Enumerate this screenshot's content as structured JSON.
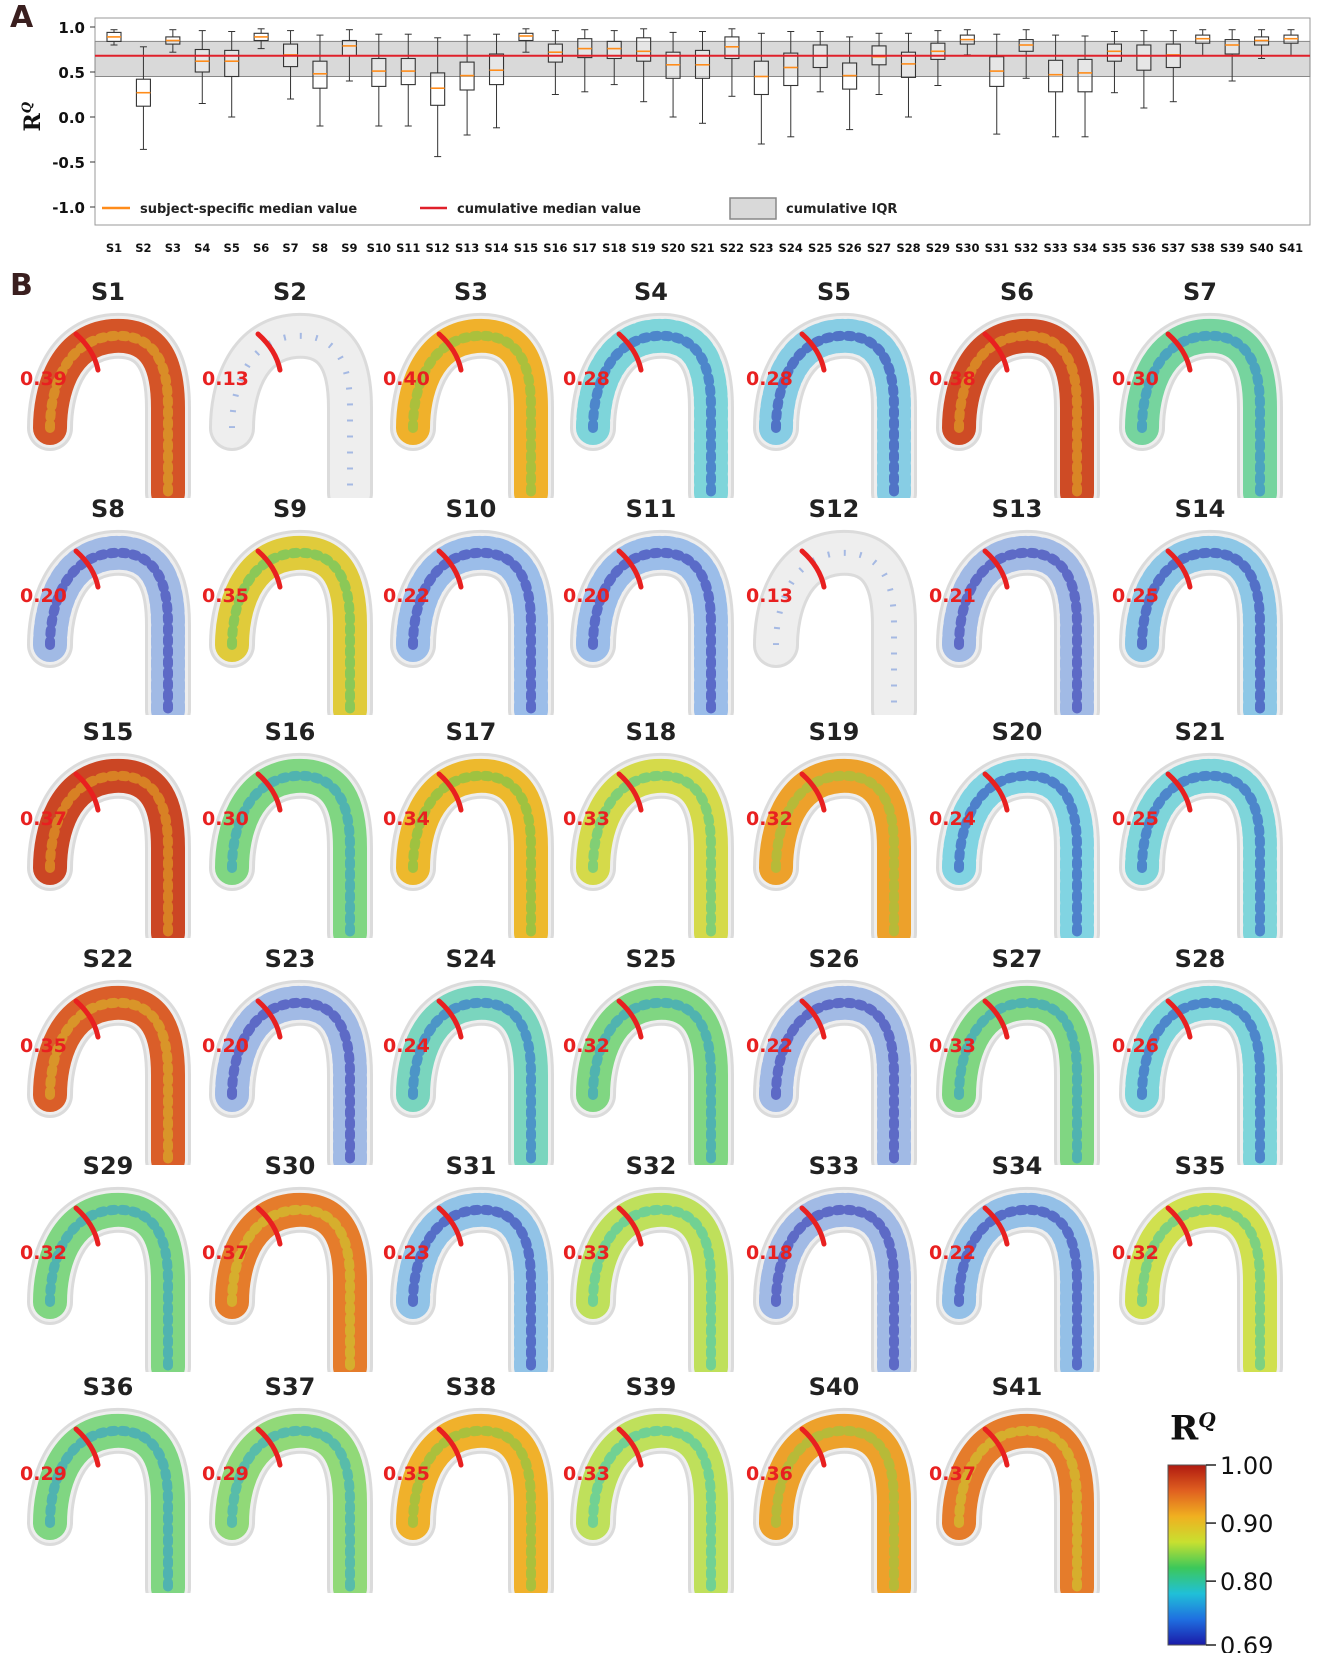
{
  "panel_a": {
    "letter": "A",
    "ylabel": "R",
    "ylabel_sup": "Q",
    "legend": {
      "subject_median": "subject-specific median value",
      "cumulative_median": "cumulative median value",
      "cumulative_iqr": "cumulative IQR"
    }
  },
  "panel_b": {
    "letter": "B"
  },
  "colors": {
    "box_edge": "#333333",
    "subject_median": "#ff8c1a",
    "cumulative_median": "#e0202a",
    "iqr_fill": "#d9d9d9",
    "section_line": "#e82020"
  },
  "chart_data": [
    {
      "type": "box",
      "ylabel": "R^Q",
      "ylim": [
        -1.2,
        1.1
      ],
      "yticks": [
        "-1.0",
        "-0.5",
        "0.0",
        "0.5",
        "1.0"
      ],
      "ytick_values": [
        -1.0,
        -0.5,
        0.0,
        0.5,
        1.0
      ],
      "cumulative_median": 0.68,
      "cumulative_iqr": [
        0.45,
        0.84
      ],
      "categories": [
        "S1",
        "S2",
        "S3",
        "S4",
        "S5",
        "S6",
        "S7",
        "S8",
        "S9",
        "S10",
        "S11",
        "S12",
        "S13",
        "S14",
        "S15",
        "S16",
        "S17",
        "S18",
        "S19",
        "S20",
        "S21",
        "S22",
        "S23",
        "S24",
        "S25",
        "S26",
        "S27",
        "S28",
        "S29",
        "S30",
        "S31",
        "S32",
        "S33",
        "S34",
        "S35",
        "S36",
        "S37",
        "S38",
        "S39",
        "S40",
        "S41"
      ],
      "boxes": [
        {
          "min": 0.8,
          "q1": 0.84,
          "median": 0.89,
          "q3": 0.94,
          "max": 0.97
        },
        {
          "min": -0.36,
          "q1": 0.12,
          "median": 0.27,
          "q3": 0.42,
          "max": 0.78
        },
        {
          "min": 0.72,
          "q1": 0.81,
          "median": 0.85,
          "q3": 0.89,
          "max": 0.97
        },
        {
          "min": 0.15,
          "q1": 0.5,
          "median": 0.62,
          "q3": 0.75,
          "max": 0.96
        },
        {
          "min": 0.0,
          "q1": 0.45,
          "median": 0.62,
          "q3": 0.74,
          "max": 0.95
        },
        {
          "min": 0.76,
          "q1": 0.85,
          "median": 0.89,
          "q3": 0.93,
          "max": 0.98
        },
        {
          "min": 0.2,
          "q1": 0.56,
          "median": 0.69,
          "q3": 0.81,
          "max": 0.96
        },
        {
          "min": -0.1,
          "q1": 0.32,
          "median": 0.48,
          "q3": 0.62,
          "max": 0.91
        },
        {
          "min": 0.4,
          "q1": 0.68,
          "median": 0.79,
          "q3": 0.85,
          "max": 0.97
        },
        {
          "min": -0.1,
          "q1": 0.34,
          "median": 0.51,
          "q3": 0.65,
          "max": 0.92
        },
        {
          "min": -0.1,
          "q1": 0.36,
          "median": 0.51,
          "q3": 0.65,
          "max": 0.92
        },
        {
          "min": -0.44,
          "q1": 0.13,
          "median": 0.32,
          "q3": 0.49,
          "max": 0.88
        },
        {
          "min": -0.2,
          "q1": 0.3,
          "median": 0.46,
          "q3": 0.61,
          "max": 0.91
        },
        {
          "min": -0.12,
          "q1": 0.36,
          "median": 0.52,
          "q3": 0.7,
          "max": 0.92
        },
        {
          "min": 0.72,
          "q1": 0.85,
          "median": 0.9,
          "q3": 0.93,
          "max": 0.98
        },
        {
          "min": 0.25,
          "q1": 0.61,
          "median": 0.72,
          "q3": 0.81,
          "max": 0.96
        },
        {
          "min": 0.28,
          "q1": 0.66,
          "median": 0.76,
          "q3": 0.87,
          "max": 0.97
        },
        {
          "min": 0.36,
          "q1": 0.65,
          "median": 0.76,
          "q3": 0.84,
          "max": 0.96
        },
        {
          "min": 0.17,
          "q1": 0.62,
          "median": 0.73,
          "q3": 0.88,
          "max": 0.98
        },
        {
          "min": 0.0,
          "q1": 0.43,
          "median": 0.58,
          "q3": 0.72,
          "max": 0.94
        },
        {
          "min": -0.07,
          "q1": 0.43,
          "median": 0.58,
          "q3": 0.74,
          "max": 0.95
        },
        {
          "min": 0.23,
          "q1": 0.65,
          "median": 0.78,
          "q3": 0.89,
          "max": 0.98
        },
        {
          "min": -0.3,
          "q1": 0.25,
          "median": 0.45,
          "q3": 0.62,
          "max": 0.93
        },
        {
          "min": -0.22,
          "q1": 0.35,
          "median": 0.55,
          "q3": 0.71,
          "max": 0.95
        },
        {
          "min": 0.28,
          "q1": 0.55,
          "median": 0.68,
          "q3": 0.8,
          "max": 0.95
        },
        {
          "min": -0.14,
          "q1": 0.31,
          "median": 0.46,
          "q3": 0.6,
          "max": 0.89
        },
        {
          "min": 0.25,
          "q1": 0.58,
          "median": 0.67,
          "q3": 0.79,
          "max": 0.93
        },
        {
          "min": 0.0,
          "q1": 0.44,
          "median": 0.59,
          "q3": 0.72,
          "max": 0.93
        },
        {
          "min": 0.35,
          "q1": 0.64,
          "median": 0.73,
          "q3": 0.82,
          "max": 0.96
        },
        {
          "min": 0.69,
          "q1": 0.81,
          "median": 0.86,
          "q3": 0.91,
          "max": 0.97
        },
        {
          "min": -0.19,
          "q1": 0.34,
          "median": 0.51,
          "q3": 0.67,
          "max": 0.92
        },
        {
          "min": 0.43,
          "q1": 0.73,
          "median": 0.8,
          "q3": 0.86,
          "max": 0.97
        },
        {
          "min": -0.22,
          "q1": 0.28,
          "median": 0.47,
          "q3": 0.63,
          "max": 0.91
        },
        {
          "min": -0.22,
          "q1": 0.28,
          "median": 0.49,
          "q3": 0.64,
          "max": 0.9
        },
        {
          "min": 0.27,
          "q1": 0.62,
          "median": 0.73,
          "q3": 0.81,
          "max": 0.95
        },
        {
          "min": 0.1,
          "q1": 0.52,
          "median": 0.68,
          "q3": 0.8,
          "max": 0.96
        },
        {
          "min": 0.17,
          "q1": 0.55,
          "median": 0.69,
          "q3": 0.81,
          "max": 0.96
        },
        {
          "min": 0.68,
          "q1": 0.82,
          "median": 0.87,
          "q3": 0.91,
          "max": 0.97
        },
        {
          "min": 0.4,
          "q1": 0.7,
          "median": 0.8,
          "q3": 0.86,
          "max": 0.97
        },
        {
          "min": 0.65,
          "q1": 0.8,
          "median": 0.85,
          "q3": 0.89,
          "max": 0.97
        },
        {
          "min": 0.68,
          "q1": 0.82,
          "median": 0.87,
          "q3": 0.91,
          "max": 0.97
        }
      ]
    },
    {
      "type": "heatmap",
      "colorbar": {
        "title": "R",
        "title_sup": "Q",
        "ticks": [
          "1.00",
          "0.90",
          "0.80",
          "0.69"
        ],
        "tick_values": [
          1.0,
          0.9,
          0.8,
          0.69
        ],
        "range": [
          0.69,
          1.0
        ],
        "colors": [
          "#1a1aa8",
          "#1f6fe0",
          "#20c0d8",
          "#3cc85a",
          "#c8e030",
          "#f0b020",
          "#e06020",
          "#b01a10"
        ]
      },
      "subjects": [
        {
          "name": "S1",
          "value": "0.39",
          "level": 0.9
        },
        {
          "name": "S2",
          "value": "0.13",
          "level": 0.02
        },
        {
          "name": "S3",
          "value": "0.40",
          "level": 0.72
        },
        {
          "name": "S4",
          "value": "0.28",
          "level": 0.3
        },
        {
          "name": "S5",
          "value": "0.28",
          "level": 0.25
        },
        {
          "name": "S6",
          "value": "0.38",
          "level": 0.92
        },
        {
          "name": "S7",
          "value": "0.30",
          "level": 0.4
        },
        {
          "name": "S8",
          "value": "0.20",
          "level": 0.12
        },
        {
          "name": "S9",
          "value": "0.35",
          "level": 0.65
        },
        {
          "name": "S10",
          "value": "0.22",
          "level": 0.15
        },
        {
          "name": "S11",
          "value": "0.20",
          "level": 0.15
        },
        {
          "name": "S12",
          "value": "0.13",
          "level": 0.05
        },
        {
          "name": "S13",
          "value": "0.21",
          "level": 0.12
        },
        {
          "name": "S14",
          "value": "0.25",
          "level": 0.22
        },
        {
          "name": "S15",
          "value": "0.37",
          "level": 0.93
        },
        {
          "name": "S16",
          "value": "0.30",
          "level": 0.45
        },
        {
          "name": "S17",
          "value": "0.34",
          "level": 0.7
        },
        {
          "name": "S18",
          "value": "0.33",
          "level": 0.6
        },
        {
          "name": "S19",
          "value": "0.32",
          "level": 0.75
        },
        {
          "name": "S20",
          "value": "0.24",
          "level": 0.28
        },
        {
          "name": "S21",
          "value": "0.25",
          "level": 0.3
        },
        {
          "name": "S22",
          "value": "0.35",
          "level": 0.88
        },
        {
          "name": "S23",
          "value": "0.20",
          "level": 0.12
        },
        {
          "name": "S24",
          "value": "0.24",
          "level": 0.35
        },
        {
          "name": "S25",
          "value": "0.32",
          "level": 0.45
        },
        {
          "name": "S26",
          "value": "0.22",
          "level": 0.12
        },
        {
          "name": "S27",
          "value": "0.33",
          "level": 0.45
        },
        {
          "name": "S28",
          "value": "0.26",
          "level": 0.3
        },
        {
          "name": "S29",
          "value": "0.32",
          "level": 0.45
        },
        {
          "name": "S30",
          "value": "0.37",
          "level": 0.82
        },
        {
          "name": "S31",
          "value": "0.23",
          "level": 0.2
        },
        {
          "name": "S32",
          "value": "0.33",
          "level": 0.55
        },
        {
          "name": "S33",
          "value": "0.18",
          "level": 0.12
        },
        {
          "name": "S34",
          "value": "0.22",
          "level": 0.18
        },
        {
          "name": "S35",
          "value": "0.32",
          "level": 0.58
        },
        {
          "name": "S36",
          "value": "0.29",
          "level": 0.45
        },
        {
          "name": "S37",
          "value": "0.29",
          "level": 0.48
        },
        {
          "name": "S38",
          "value": "0.35",
          "level": 0.72
        },
        {
          "name": "S39",
          "value": "0.33",
          "level": 0.55
        },
        {
          "name": "S40",
          "value": "0.36",
          "level": 0.75
        },
        {
          "name": "S41",
          "value": "0.37",
          "level": 0.82
        }
      ]
    }
  ]
}
